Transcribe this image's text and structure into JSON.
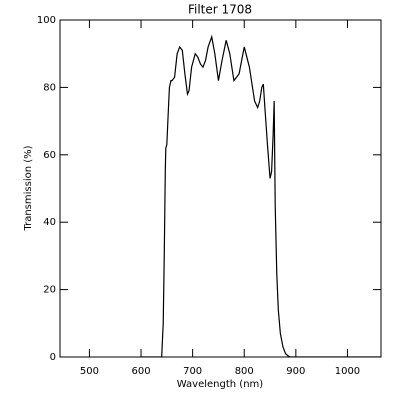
{
  "chart_data": {
    "type": "line",
    "title": "Filter 1708",
    "x_label": "Wavelength (nm)",
    "y_label": "Transmission (%)",
    "x": [
      600,
      640,
      643,
      645,
      647,
      648,
      650,
      652,
      655,
      658,
      660,
      665,
      670,
      675,
      680,
      685,
      690,
      693,
      698,
      705,
      710,
      715,
      720,
      725,
      730,
      737,
      743,
      750,
      757,
      765,
      772,
      780,
      790,
      800,
      810,
      820,
      826,
      830,
      834,
      837,
      840,
      845,
      850,
      853,
      856,
      858,
      860,
      863,
      866,
      870,
      875,
      880,
      885,
      890,
      1065
    ],
    "series": [
      {
        "name": "Transmission",
        "color": "#000000",
        "values": [
          0,
          0,
          10,
          30,
          55,
          62,
          63,
          70,
          80,
          82,
          82,
          83,
          90,
          92,
          91,
          84,
          78,
          79,
          86,
          90,
          89,
          87,
          86,
          88,
          92,
          95,
          90,
          82,
          88,
          94,
          90,
          82,
          84,
          92,
          86,
          76,
          74,
          76,
          80,
          81,
          74,
          63,
          53,
          55,
          66,
          76,
          45,
          25,
          14,
          7,
          3,
          1,
          0.3,
          0,
          0
        ]
      }
    ],
    "xlim": [
      443,
      1065
    ],
    "ylim": [
      0,
      100
    ],
    "xticks": [
      500,
      600,
      700,
      800,
      900,
      1000
    ],
    "yticks": [
      0,
      20,
      40,
      60,
      80,
      100
    ]
  }
}
